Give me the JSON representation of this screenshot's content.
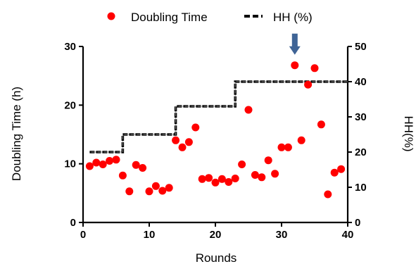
{
  "chart_data": {
    "type": "scatter",
    "title": "",
    "xlabel": "Rounds",
    "ylabel_left": "Doubling Time (h)",
    "ylabel_right": "HH(%)",
    "xlim": [
      0,
      40
    ],
    "ylim_left": [
      0,
      30
    ],
    "ylim_right": [
      0,
      50
    ],
    "x_ticks": [
      0,
      10,
      20,
      30,
      40
    ],
    "y_left_ticks": [
      0,
      10,
      20,
      30
    ],
    "y_right_ticks": [
      0,
      10,
      20,
      30,
      40,
      50
    ],
    "grid": false,
    "legend_position": "top",
    "series": [
      {
        "name": "Doubling Time",
        "kind": "scatter",
        "axis": "left",
        "color": "#ff0000",
        "x": [
          1,
          2,
          3,
          4,
          5,
          6,
          7,
          8,
          9,
          10,
          11,
          12,
          13,
          14,
          15,
          16,
          17,
          18,
          19,
          20,
          21,
          22,
          23,
          24,
          25,
          26,
          27,
          28,
          29,
          30,
          31,
          32,
          33,
          34,
          35,
          36,
          37,
          38,
          39
        ],
        "y": [
          9.6,
          10.2,
          9.9,
          10.5,
          10.7,
          8.0,
          5.3,
          9.8,
          9.3,
          5.3,
          6.2,
          5.4,
          5.9,
          14.0,
          12.8,
          13.7,
          16.2,
          7.4,
          7.6,
          6.8,
          7.4,
          6.9,
          7.5,
          9.9,
          19.2,
          8.1,
          7.7,
          10.6,
          8.3,
          12.8,
          12.8,
          26.8,
          14.0,
          23.5,
          26.3,
          16.7,
          4.8,
          8.5,
          9.1
        ]
      },
      {
        "name": "HH (%)",
        "kind": "step",
        "axis": "right",
        "color": "#000000",
        "x": [
          1,
          6,
          6,
          14,
          14,
          23,
          23,
          40
        ],
        "y": [
          20,
          20,
          25,
          25,
          33,
          33,
          40,
          40
        ]
      }
    ],
    "annotations": [
      {
        "type": "arrow",
        "x": 32,
        "y": 28.6,
        "color": "#3f6496"
      }
    ]
  }
}
